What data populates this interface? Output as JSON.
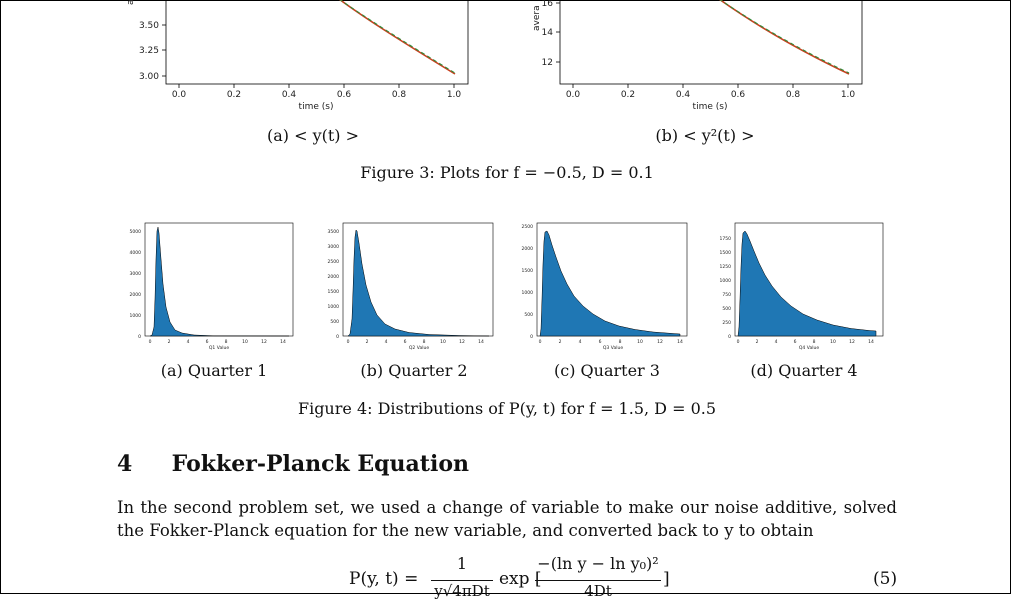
{
  "figure3": {
    "left_plot": {
      "y_label_partial": "ave",
      "x_axis_label": "time (s)",
      "x_ticks": [
        "0.0",
        "0.2",
        "0.4",
        "0.6",
        "0.8",
        "1.0"
      ],
      "y_ticks": [
        "3.00",
        "3.25",
        "3.50"
      ],
      "subcaption": "(a) < y(t) >"
    },
    "right_plot": {
      "y_label_partial": "avera",
      "x_axis_label": "time (s)",
      "x_ticks": [
        "0.0",
        "0.2",
        "0.4",
        "0.6",
        "0.8",
        "1.0"
      ],
      "y_ticks": [
        "12",
        "14",
        "16"
      ],
      "subcaption": "(b) < y²(t) >"
    },
    "caption": "Figure 3: Plots for f = −0.5, D = 0.1",
    "colors": {
      "line_red": "#c8401e",
      "line_green": "#2e8b3a"
    }
  },
  "figure4": {
    "plots": [
      {
        "subcaption": "(a) Quarter 1",
        "x_axis_label": "Q1 Value",
        "y_ticks": [
          "0",
          "1000",
          "2000",
          "3000",
          "4000",
          "5000"
        ],
        "x_ticks": [
          "0",
          "2",
          "4",
          "6",
          "8",
          "10",
          "12",
          "14"
        ]
      },
      {
        "subcaption": "(b) Quarter 2",
        "x_axis_label": "Q2 Value",
        "y_ticks": [
          "0",
          "500",
          "1000",
          "1500",
          "2000",
          "2500",
          "3000",
          "3500"
        ],
        "x_ticks": [
          "0",
          "2",
          "4",
          "6",
          "8",
          "10",
          "12",
          "14"
        ]
      },
      {
        "subcaption": "(c) Quarter 3",
        "x_axis_label": "Q3 Value",
        "y_ticks": [
          "0",
          "500",
          "1000",
          "1500",
          "2000",
          "2500"
        ],
        "x_ticks": [
          "0",
          "2",
          "4",
          "6",
          "8",
          "10",
          "12",
          "14"
        ]
      },
      {
        "subcaption": "(d) Quarter 4",
        "x_axis_label": "Q4 Value",
        "y_ticks": [
          "0",
          "250",
          "500",
          "750",
          "1000",
          "1250",
          "1500",
          "1750"
        ],
        "x_ticks": [
          "0",
          "2",
          "4",
          "6",
          "8",
          "10",
          "12",
          "14"
        ]
      }
    ],
    "caption": "Figure 4: Distributions of P(y, t) for f = 1.5, D = 0.5",
    "colors": {
      "bar_fill": "#1f77b4",
      "outline": "#000000"
    }
  },
  "section": {
    "number": "4",
    "title": "Fokker-Planck Equation",
    "paragraph": "In the second problem set, we used a change of variable to make our noise additive, solved the Fokker-Planck equation for the new variable, and converted back to y to obtain",
    "equation_lhs": "P(y, t) =",
    "equation_num": "1",
    "equation_den": "y√4πDt",
    "equation_exp": "exp [",
    "equation_exp_num": "−(ln y − ln y₀)²",
    "equation_exp_den": "4Dt",
    "equation_close": "]",
    "equation_number": "(5)"
  }
}
